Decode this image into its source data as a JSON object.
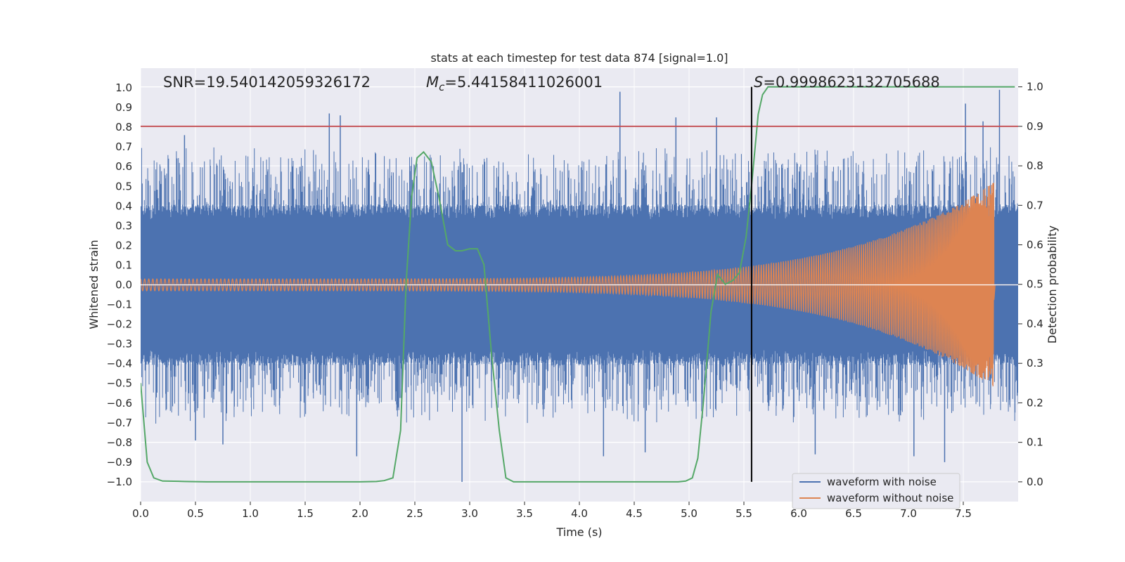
{
  "chart_data": {
    "type": "line",
    "title": "stats at each timestep for test data 874 [signal=1.0]",
    "xlabel": "Time (s)",
    "ylabel": "Whitened strain",
    "y2label": "Detection probability",
    "xlim": [
      0.0,
      8.0
    ],
    "ylim": [
      -1.1,
      1.1
    ],
    "y2lim": [
      -0.05,
      1.0473
    ],
    "xticks": [
      0.0,
      0.5,
      1.0,
      1.5,
      2.0,
      2.5,
      3.0,
      3.5,
      4.0,
      4.5,
      5.0,
      5.5,
      6.0,
      6.5,
      7.0,
      7.5
    ],
    "yticks": [
      -1.0,
      -0.9,
      -0.8,
      -0.7,
      -0.6,
      -0.5,
      -0.4,
      -0.3,
      -0.2,
      -0.1,
      0.0,
      0.1,
      0.2,
      0.3,
      0.4,
      0.5,
      0.6,
      0.7,
      0.8,
      0.9,
      1.0
    ],
    "y2ticks": [
      0.0,
      0.1,
      0.2,
      0.3,
      0.4,
      0.5,
      0.6,
      0.7,
      0.8,
      0.9,
      1.0
    ],
    "annotations": {
      "snr": "SNR=19.540142059326172",
      "mc_symbol": "M",
      "mc_subscript": "c",
      "mc_value": "=5.44158411026001",
      "s_symbol": "S",
      "s_value": "=0.9998623132705688"
    },
    "threshold_y2": 0.9,
    "detection_time": 5.57,
    "series": [
      {
        "name": "waveform with noise",
        "color": "#4c72b0",
        "kind": "noise",
        "base_envelope": 0.33,
        "spikes": [
          {
            "x": 0.4,
            "y": 0.76
          },
          {
            "x": 1.72,
            "y": 0.87
          },
          {
            "x": 1.82,
            "y": 0.86
          },
          {
            "x": 4.37,
            "y": 0.98
          },
          {
            "x": 4.88,
            "y": 0.85
          },
          {
            "x": 5.25,
            "y": 0.85
          },
          {
            "x": 7.52,
            "y": 0.92
          },
          {
            "x": 7.68,
            "y": 0.83
          },
          {
            "x": 7.83,
            "y": 0.99
          },
          {
            "x": 0.5,
            "y": -0.79
          },
          {
            "x": 0.75,
            "y": -0.81
          },
          {
            "x": 1.97,
            "y": -0.87
          },
          {
            "x": 2.93,
            "y": -1.0
          },
          {
            "x": 4.22,
            "y": -0.87
          },
          {
            "x": 4.6,
            "y": -0.85
          },
          {
            "x": 6.15,
            "y": -0.86
          },
          {
            "x": 7.05,
            "y": -0.87
          },
          {
            "x": 7.33,
            "y": -0.9
          }
        ]
      },
      {
        "name": "waveform without noise",
        "color": "#dd8452",
        "kind": "chirp",
        "amplitude_start": 0.03,
        "amplitude_peak": 0.52,
        "merger_time": 7.78,
        "ringdown_value": 0.0
      },
      {
        "name": "detection probability",
        "color": "#55a868",
        "kind": "probability",
        "x": [
          0.0,
          0.06,
          0.12,
          0.2,
          0.4,
          0.6,
          1.0,
          1.5,
          2.0,
          2.15,
          2.22,
          2.3,
          2.37,
          2.42,
          2.47,
          2.52,
          2.58,
          2.65,
          2.72,
          2.8,
          2.87,
          2.93,
          3.0,
          3.07,
          3.13,
          3.2,
          3.27,
          3.33,
          3.4,
          3.6,
          4.0,
          4.5,
          4.9,
          4.97,
          5.03,
          5.08,
          5.13,
          5.2,
          5.26,
          5.33,
          5.4,
          5.46,
          5.52,
          5.57,
          5.63,
          5.67,
          5.72,
          6.0,
          7.0,
          7.97
        ],
        "y": [
          0.25,
          0.05,
          0.01,
          0.002,
          0.001,
          0.0,
          0.0,
          0.0,
          0.0,
          0.001,
          0.003,
          0.01,
          0.13,
          0.5,
          0.72,
          0.82,
          0.835,
          0.81,
          0.72,
          0.6,
          0.585,
          0.585,
          0.59,
          0.59,
          0.55,
          0.32,
          0.13,
          0.01,
          0.0,
          0.0,
          0.0,
          0.0,
          0.0,
          0.002,
          0.01,
          0.06,
          0.2,
          0.43,
          0.525,
          0.5,
          0.51,
          0.53,
          0.62,
          0.75,
          0.93,
          0.98,
          1.0,
          1.0,
          1.0,
          1.0
        ]
      }
    ],
    "legend": {
      "location": "lower right",
      "entries": [
        {
          "label": "waveform with noise",
          "color": "#4c72b0"
        },
        {
          "label": "waveform without noise",
          "color": "#dd8452"
        }
      ]
    },
    "colors": {
      "background": "#eaeaf2",
      "grid": "#ffffff",
      "threshold": "#c44e52",
      "marker": "#000000"
    }
  }
}
